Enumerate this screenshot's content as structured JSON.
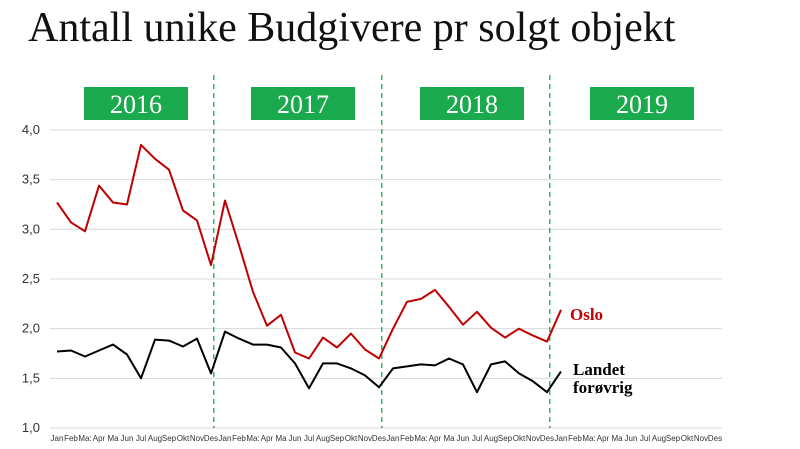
{
  "title": "Antall unike Budgivere pr solgt objekt",
  "colors": {
    "oslo": "#c00000",
    "landet": "#000000",
    "year_box": "#1aa94c",
    "divider": "#1aa94c",
    "grid": "#d9d9d9"
  },
  "chart_data": {
    "type": "line",
    "title": "Antall unike Budgivere pr solgt objekt",
    "years": [
      "2016",
      "2017",
      "2018",
      "2019"
    ],
    "months": [
      "Jan",
      "Feb",
      "Ma:",
      "Apr",
      "Ma",
      "Jun",
      "Jul",
      "Aug",
      "Sep",
      "Okt",
      "Nov",
      "Des"
    ],
    "ylim": [
      1.0,
      4.0
    ],
    "yticks": [
      {
        "value": 1.0,
        "label": "1,0"
      },
      {
        "value": 1.5,
        "label": "1,5"
      },
      {
        "value": 2.0,
        "label": "2,0"
      },
      {
        "value": 2.5,
        "label": "2,5"
      },
      {
        "value": 3.0,
        "label": "3,0"
      },
      {
        "value": 3.5,
        "label": "3,5"
      },
      {
        "value": 4.0,
        "label": "4,0"
      }
    ],
    "grid": true,
    "series": [
      {
        "name": "Oslo",
        "color": "#c00000",
        "values": [
          3.27,
          3.07,
          2.98,
          3.44,
          3.27,
          3.25,
          3.85,
          3.71,
          3.6,
          3.19,
          3.09,
          2.64,
          3.29,
          2.84,
          2.37,
          2.03,
          2.14,
          1.76,
          1.7,
          1.91,
          1.81,
          1.95,
          1.79,
          1.7,
          2.0,
          2.27,
          2.3,
          2.39,
          2.22,
          2.04,
          2.17,
          2.01,
          1.91,
          2.0,
          1.93,
          1.87,
          2.19
        ]
      },
      {
        "name": "Landet forøvrig",
        "color": "#000000",
        "values": [
          1.77,
          1.78,
          1.72,
          1.78,
          1.84,
          1.74,
          1.5,
          1.89,
          1.88,
          1.82,
          1.9,
          1.55,
          1.97,
          1.9,
          1.84,
          1.84,
          1.81,
          1.65,
          1.4,
          1.65,
          1.65,
          1.6,
          1.53,
          1.41,
          1.6,
          1.62,
          1.64,
          1.63,
          1.7,
          1.64,
          1.36,
          1.64,
          1.67,
          1.55,
          1.47,
          1.36,
          1.57
        ]
      }
    ],
    "labels": {
      "oslo": "Oslo",
      "landet_line1": "Landet",
      "landet_line2": "forøvrig"
    }
  }
}
